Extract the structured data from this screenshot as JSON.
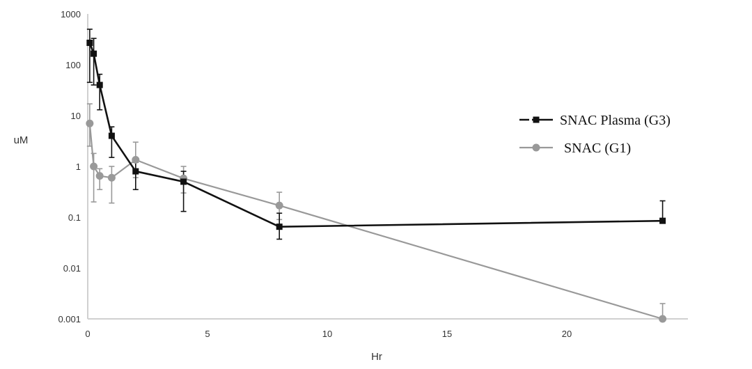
{
  "chart_data": {
    "type": "line",
    "title": "",
    "xlabel": "Hr",
    "ylabel": "uM",
    "xlim": [
      0,
      25
    ],
    "ylim": [
      0.001,
      1000
    ],
    "yscale": "log",
    "grid": false,
    "legend_position": "right",
    "x_ticks": [
      "0",
      "5",
      "10",
      "15",
      "20"
    ],
    "y_ticks": [
      "0.001",
      "0.01",
      "0.1",
      "1",
      "10",
      "100",
      "1000"
    ],
    "series": [
      {
        "name": "SNAC Plasma (G3)",
        "color": "#111111",
        "marker": "square",
        "x": [
          0.083,
          0.25,
          0.5,
          1,
          2,
          4,
          8,
          24
        ],
        "y": [
          270,
          165,
          40,
          4,
          0.8,
          0.5,
          0.065,
          0.085
        ],
        "err_upper": [
          500,
          330,
          65,
          6,
          1.2,
          0.8,
          0.12,
          0.21
        ],
        "err_lower": [
          45,
          40,
          13,
          1.5,
          0.35,
          0.13,
          0.037,
          0.085
        ]
      },
      {
        "name": "SNAC (G1)",
        "color": "#999999",
        "marker": "circle",
        "x": [
          0.083,
          0.25,
          0.5,
          1,
          2,
          4,
          8,
          24
        ],
        "y": [
          7,
          1.0,
          0.65,
          0.6,
          1.35,
          0.58,
          0.17,
          0.001
        ],
        "err_upper": [
          17,
          1.8,
          0.9,
          1.0,
          3.0,
          1.0,
          0.31,
          0.002
        ],
        "err_lower": [
          2.5,
          0.2,
          0.35,
          0.19,
          0.6,
          0.3,
          0.09,
          0.001
        ]
      }
    ]
  }
}
